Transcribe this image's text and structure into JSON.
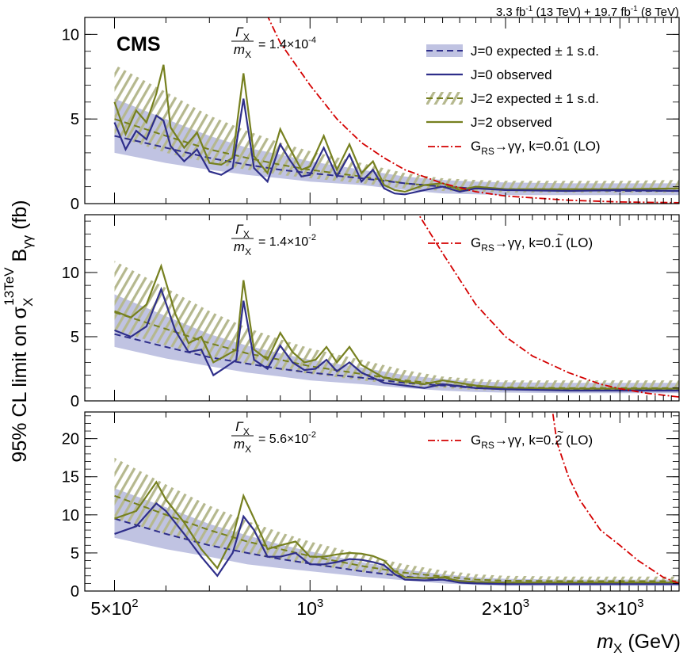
{
  "header": {
    "lumi_a": "3.3 fb",
    "lumi_a_exp": "-1",
    "lumi_a_energy": " (13 TeV) + 19.7 fb",
    "lumi_b_exp": "-1",
    "lumi_b_energy": " (8 TeV)"
  },
  "cms_label": "CMS",
  "y_axis_label": {
    "prefix": "95% CL limit on σ",
    "sub": "X",
    "sup": "13TeV",
    "mid": " B",
    "sub2": "γγ",
    "unit": " (fb)"
  },
  "x_axis_label": {
    "var": "m",
    "sub": "X",
    "unit": " (GeV)"
  },
  "legend": {
    "j0_exp": "J=0 expected ± 1 s.d.",
    "j0_obs": "J=0 observed",
    "j2_exp": "J=2 expected ± 1 s.d.",
    "j2_obs": "J=2 observed"
  },
  "colors": {
    "j0": "#2e2e8a",
    "j0_band": "#c0c3e2",
    "j2": "#76801f",
    "j2_hatch": "#b5b88e",
    "graviton": "#d40000"
  },
  "chart_data": [
    {
      "type": "line",
      "width_label": {
        "num": "Γ",
        "num_sub": "X",
        "den": "m",
        "den_sub": "X",
        "value": " = 1.4×10",
        "exp": "-4"
      },
      "graviton_label": {
        "base": "G",
        "sub": "RS",
        "decay": "→γγ, ",
        "k": "k",
        "value": "=0.01 (LO)"
      },
      "xscale": "log",
      "xlim": [
        450,
        3700
      ],
      "ylim": [
        0,
        11
      ],
      "yticks": [
        0,
        5,
        10
      ],
      "xticks": [
        {
          "value": 500,
          "label": "5×10",
          "exp": "2"
        },
        {
          "value": 1000,
          "label": "10",
          "exp": "3"
        },
        {
          "value": 2000,
          "label": "2×10",
          "exp": "3"
        },
        {
          "value": 3000,
          "label": "3×10",
          "exp": "3"
        }
      ],
      "j0_expected": {
        "x": [
          500,
          600,
          700,
          800,
          900,
          1000,
          1200,
          1400,
          1600,
          1800,
          2000,
          2500,
          3000,
          3700
        ],
        "y": [
          4.0,
          3.3,
          2.7,
          2.3,
          2.0,
          1.8,
          1.5,
          1.2,
          1.0,
          0.9,
          0.85,
          0.8,
          0.75,
          0.75
        ],
        "lo": [
          3.0,
          2.4,
          2.0,
          1.7,
          1.5,
          1.3,
          1.1,
          0.8,
          0.6,
          0.55,
          0.5,
          0.5,
          0.5,
          0.5
        ],
        "hi": [
          6.2,
          5.0,
          4.0,
          3.3,
          2.9,
          2.5,
          2.0,
          1.6,
          1.4,
          1.3,
          1.25,
          1.2,
          1.2,
          1.2
        ]
      },
      "j0_observed": {
        "x": [
          500,
          520,
          540,
          560,
          580,
          595,
          610,
          640,
          670,
          700,
          730,
          760,
          790,
          820,
          860,
          900,
          930,
          970,
          1000,
          1050,
          1100,
          1150,
          1200,
          1250,
          1300,
          1350,
          1400,
          1500,
          1600,
          1700,
          1800,
          2000,
          2500,
          3000,
          3700
        ],
        "y": [
          4.8,
          3.2,
          4.3,
          3.8,
          5.2,
          4.9,
          3.4,
          2.5,
          3.2,
          1.9,
          1.7,
          2.1,
          6.2,
          2.1,
          1.3,
          3.5,
          2.6,
          1.6,
          1.7,
          3.3,
          1.6,
          2.9,
          1.3,
          2.0,
          0.9,
          0.6,
          0.55,
          0.8,
          1.0,
          0.7,
          0.9,
          0.8,
          0.75,
          0.8,
          0.75
        ]
      },
      "j2_expected": {
        "x": [
          500,
          600,
          700,
          800,
          900,
          1000,
          1200,
          1400,
          1600,
          1800,
          2000,
          2500,
          3000,
          3700
        ],
        "y": [
          5.0,
          4.0,
          3.2,
          2.7,
          2.3,
          2.0,
          1.6,
          1.2,
          1.0,
          0.9,
          0.85,
          0.85,
          0.85,
          0.9
        ],
        "lo": [
          4.0,
          3.0,
          2.4,
          2.0,
          1.7,
          1.5,
          1.2,
          0.9,
          0.75,
          0.7,
          0.65,
          0.65,
          0.65,
          0.65
        ],
        "hi": [
          8.2,
          6.6,
          5.2,
          4.3,
          3.6,
          3.1,
          2.4,
          1.8,
          1.5,
          1.4,
          1.35,
          1.35,
          1.35,
          1.4
        ]
      },
      "j2_observed": {
        "x": [
          500,
          520,
          540,
          560,
          580,
          595,
          610,
          640,
          670,
          700,
          730,
          760,
          790,
          820,
          860,
          900,
          930,
          970,
          1000,
          1050,
          1100,
          1150,
          1200,
          1250,
          1300,
          1350,
          1400,
          1500,
          1600,
          1700,
          1800,
          2000,
          2500,
          3000,
          3700
        ],
        "y": [
          6.0,
          4.1,
          5.5,
          4.8,
          6.5,
          8.2,
          4.5,
          3.3,
          4.2,
          2.4,
          2.3,
          2.7,
          7.7,
          2.8,
          1.8,
          4.4,
          3.3,
          2.0,
          2.2,
          4.0,
          2.0,
          3.5,
          1.8,
          2.5,
          1.1,
          0.8,
          0.7,
          1.1,
          1.2,
          0.8,
          1.0,
          0.85,
          0.85,
          0.85,
          0.9
        ]
      },
      "graviton": {
        "x": [
          800,
          850,
          900,
          1000,
          1100,
          1200,
          1300,
          1400,
          1600,
          1800,
          2000,
          2500,
          3000,
          3700
        ],
        "y": [
          15,
          11.5,
          9.5,
          7.0,
          5.0,
          3.6,
          2.7,
          2.0,
          1.2,
          0.7,
          0.45,
          0.2,
          0.1,
          0.05
        ]
      }
    },
    {
      "type": "line",
      "width_label": {
        "num": "Γ",
        "num_sub": "X",
        "den": "m",
        "den_sub": "X",
        "value": " = 1.4×10",
        "exp": "-2"
      },
      "graviton_label": {
        "base": "G",
        "sub": "RS",
        "decay": "→γγ, ",
        "k": "k",
        "value": "=0.1 (LO)"
      },
      "xscale": "log",
      "xlim": [
        450,
        3700
      ],
      "ylim": [
        0,
        14.5
      ],
      "yticks": [
        0,
        5,
        10
      ],
      "xticks": [
        {
          "value": 500,
          "label": "5×10",
          "exp": "2"
        },
        {
          "value": 1000,
          "label": "10",
          "exp": "3"
        },
        {
          "value": 2000,
          "label": "2×10",
          "exp": "3"
        },
        {
          "value": 3000,
          "label": "3×10",
          "exp": "3"
        }
      ],
      "j0_expected": {
        "x": [
          500,
          600,
          700,
          800,
          900,
          1000,
          1200,
          1400,
          1600,
          1800,
          2000,
          2500,
          3000,
          3700
        ],
        "y": [
          5.2,
          4.2,
          3.4,
          2.9,
          2.5,
          2.2,
          1.8,
          1.4,
          1.2,
          1.0,
          0.95,
          0.9,
          0.85,
          0.85
        ],
        "lo": [
          4.2,
          3.3,
          2.7,
          2.2,
          1.9,
          1.6,
          1.3,
          1.0,
          0.8,
          0.7,
          0.65,
          0.6,
          0.6,
          0.6
        ],
        "hi": [
          8.3,
          6.6,
          5.2,
          4.3,
          3.7,
          3.2,
          2.6,
          2.0,
          1.7,
          1.5,
          1.45,
          1.4,
          1.4,
          1.4
        ]
      },
      "j0_observed": {
        "x": [
          500,
          530,
          560,
          590,
          620,
          650,
          680,
          710,
          740,
          770,
          790,
          820,
          860,
          900,
          940,
          980,
          1020,
          1060,
          1100,
          1150,
          1200,
          1300,
          1400,
          1500,
          1600,
          1800,
          2000,
          2500,
          3000,
          3700
        ],
        "y": [
          5.5,
          5.0,
          5.8,
          8.7,
          5.5,
          3.8,
          4.0,
          2.0,
          2.6,
          3.2,
          7.8,
          3.2,
          2.5,
          4.3,
          3.0,
          2.4,
          2.5,
          3.2,
          2.3,
          3.0,
          2.2,
          1.4,
          1.2,
          1.0,
          1.3,
          1.0,
          0.9,
          0.8,
          0.8,
          0.8
        ]
      },
      "j2_expected": {
        "x": [
          500,
          600,
          700,
          800,
          900,
          1000,
          1200,
          1400,
          1600,
          1800,
          2000,
          2500,
          3000,
          3700
        ],
        "y": [
          6.9,
          5.6,
          4.5,
          3.7,
          3.2,
          2.7,
          2.1,
          1.6,
          1.3,
          1.1,
          1.05,
          1.0,
          1.0,
          1.0
        ],
        "lo": [
          5.5,
          4.3,
          3.5,
          2.9,
          2.4,
          2.1,
          1.6,
          1.2,
          1.0,
          0.85,
          0.8,
          0.8,
          0.8,
          0.8
        ],
        "hi": [
          10.9,
          8.8,
          7.0,
          5.7,
          4.8,
          4.1,
          3.2,
          2.4,
          1.9,
          1.7,
          1.6,
          1.6,
          1.6,
          1.6
        ]
      },
      "j2_observed": {
        "x": [
          500,
          530,
          560,
          590,
          620,
          650,
          680,
          710,
          740,
          770,
          790,
          820,
          860,
          900,
          940,
          980,
          1020,
          1060,
          1100,
          1150,
          1200,
          1300,
          1400,
          1500,
          1600,
          1800,
          2000,
          2500,
          3000,
          3700
        ],
        "y": [
          7.0,
          6.5,
          7.5,
          10.5,
          6.8,
          4.5,
          5.0,
          3.0,
          3.5,
          4.0,
          9.4,
          4.0,
          3.2,
          5.3,
          3.8,
          3.0,
          3.2,
          4.2,
          3.0,
          4.2,
          2.8,
          1.8,
          1.5,
          1.3,
          1.6,
          1.2,
          1.0,
          0.95,
          0.95,
          0.95
        ]
      },
      "graviton": {
        "x": [
          1450,
          1600,
          1800,
          2000,
          2200,
          2500,
          2800,
          3000,
          3300,
          3700
        ],
        "y": [
          15,
          11.5,
          7.5,
          5.0,
          3.5,
          2.2,
          1.3,
          0.95,
          0.6,
          0.3
        ]
      }
    },
    {
      "type": "line",
      "width_label": {
        "num": "Γ",
        "num_sub": "X",
        "den": "m",
        "den_sub": "X",
        "value": " = 5.6×10",
        "exp": "-2"
      },
      "graviton_label": {
        "base": "G",
        "sub": "RS",
        "decay": "→γγ, ",
        "k": "k",
        "value": "=0.2 (LO)"
      },
      "xscale": "log",
      "xlim": [
        450,
        3700
      ],
      "ylim": [
        0,
        23.5
      ],
      "yticks": [
        0,
        5,
        10,
        15,
        20
      ],
      "xticks": [
        {
          "value": 500,
          "label": "5×10",
          "exp": "2"
        },
        {
          "value": 1000,
          "label": "10",
          "exp": "3"
        },
        {
          "value": 2000,
          "label": "2×10",
          "exp": "3"
        },
        {
          "value": 3000,
          "label": "3×10",
          "exp": "3"
        }
      ],
      "j0_expected": {
        "x": [
          500,
          600,
          700,
          800,
          900,
          1000,
          1200,
          1400,
          1600,
          1800,
          2000,
          2500,
          3000,
          3700
        ],
        "y": [
          9.5,
          7.5,
          6.0,
          5.0,
          4.2,
          3.6,
          2.6,
          1.9,
          1.5,
          1.2,
          1.1,
          1.0,
          1.0,
          1.0
        ],
        "lo": [
          7.0,
          5.5,
          4.5,
          3.5,
          3.0,
          2.6,
          1.9,
          1.4,
          1.0,
          0.8,
          0.7,
          0.7,
          0.7,
          0.7
        ],
        "hi": [
          13.5,
          11.0,
          8.8,
          7.3,
          6.1,
          5.2,
          3.8,
          2.8,
          2.2,
          1.8,
          1.6,
          1.5,
          1.5,
          1.5
        ]
      },
      "j0_observed": {
        "x": [
          500,
          540,
          580,
          600,
          640,
          680,
          720,
          760,
          790,
          820,
          860,
          900,
          950,
          1000,
          1050,
          1100,
          1150,
          1200,
          1250,
          1300,
          1350,
          1400,
          1500,
          1600,
          1700,
          1800,
          2000,
          2500,
          3000,
          3700
        ],
        "y": [
          7.5,
          8.5,
          11.5,
          10.5,
          7.5,
          4.5,
          2.0,
          5.0,
          9.8,
          8.0,
          4.5,
          4.5,
          5.0,
          3.5,
          3.5,
          3.8,
          4.2,
          4.1,
          3.8,
          3.4,
          2.2,
          1.5,
          1.4,
          1.5,
          1.1,
          1.0,
          0.9,
          0.9,
          0.9,
          0.9
        ]
      },
      "j2_expected": {
        "x": [
          500,
          600,
          700,
          800,
          900,
          1000,
          1200,
          1400,
          1600,
          1800,
          2000,
          2500,
          3000,
          3700
        ],
        "y": [
          12.5,
          10.0,
          8.0,
          6.5,
          5.5,
          4.6,
          3.3,
          2.4,
          1.9,
          1.5,
          1.35,
          1.3,
          1.3,
          1.3
        ],
        "lo": [
          9.5,
          7.5,
          6.0,
          4.9,
          4.1,
          3.5,
          2.5,
          1.8,
          1.4,
          1.1,
          1.0,
          0.95,
          0.95,
          0.95
        ],
        "hi": [
          17.5,
          14.0,
          11.2,
          9.2,
          7.7,
          6.5,
          4.8,
          3.5,
          2.7,
          2.2,
          2.0,
          1.9,
          1.9,
          1.9
        ]
      },
      "j2_observed": {
        "x": [
          500,
          540,
          580,
          600,
          640,
          680,
          720,
          760,
          790,
          820,
          860,
          900,
          950,
          1000,
          1050,
          1100,
          1150,
          1200,
          1250,
          1300,
          1350,
          1400,
          1500,
          1600,
          1700,
          1800,
          2000,
          2500,
          3000,
          3700
        ],
        "y": [
          9.5,
          10.5,
          14.3,
          12.0,
          9.0,
          5.5,
          3.0,
          7.0,
          12.5,
          9.5,
          5.5,
          6.0,
          6.5,
          4.5,
          4.5,
          4.8,
          5.0,
          4.9,
          4.6,
          4.0,
          2.6,
          1.8,
          1.7,
          1.8,
          1.3,
          1.2,
          1.1,
          1.1,
          1.1,
          1.1
        ]
      },
      "graviton": {
        "x": [
          2350,
          2400,
          2500,
          2600,
          2800,
          3000,
          3200,
          3500,
          3700
        ],
        "y": [
          25,
          19.5,
          15,
          12,
          8.0,
          6.0,
          4.0,
          1.8,
          1.0
        ]
      }
    }
  ]
}
